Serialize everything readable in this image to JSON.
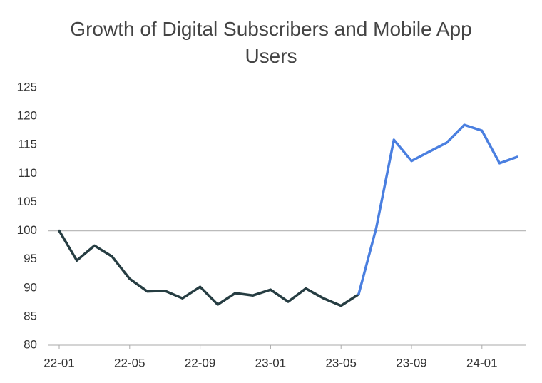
{
  "chart_data": {
    "type": "line",
    "title": "Growth of Digital Subscribers and Mobile App Users",
    "categories": [
      "22-01",
      null,
      null,
      null,
      "22-05",
      null,
      null,
      null,
      "22-09",
      null,
      null,
      null,
      "23-01",
      null,
      null,
      null,
      "23-05",
      null,
      null,
      null,
      "23-09",
      null,
      null,
      null,
      "24-01",
      null,
      null
    ],
    "series": [
      {
        "color": "#263d42",
        "values": [
          100,
          94.8,
          97.4,
          95.5,
          91.6,
          89.4,
          89.5,
          88.2,
          90.2,
          87.1,
          89.1,
          88.7,
          89.7,
          87.6,
          89.9,
          88.2,
          86.9,
          88.9,
          null,
          null,
          null,
          null,
          null,
          null,
          null,
          null,
          null
        ]
      },
      {
        "color": "#4a7fe0",
        "values": [
          null,
          null,
          null,
          null,
          null,
          null,
          null,
          null,
          null,
          null,
          null,
          null,
          null,
          null,
          null,
          null,
          null,
          88.9,
          100.5,
          115.9,
          112.2,
          113.8,
          115.4,
          118.5,
          117.5,
          111.8,
          112.9
        ]
      }
    ],
    "hline": 100,
    "ylim": [
      80,
      125
    ],
    "yticks": [
      80,
      85,
      90,
      95,
      100,
      105,
      110,
      115,
      120,
      125
    ]
  }
}
